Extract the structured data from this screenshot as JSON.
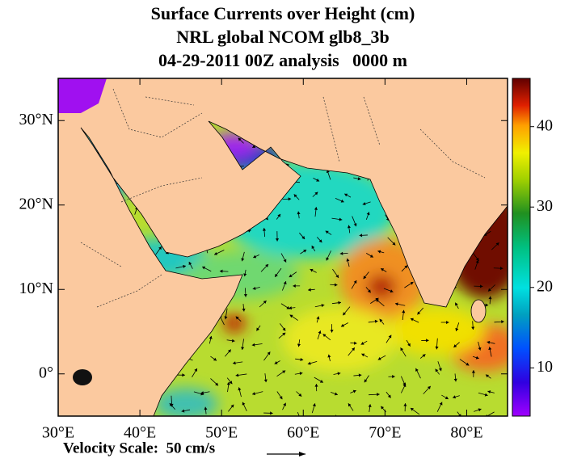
{
  "title": [
    "Surface Currents over Height (cm)",
    "NRL global NCOM glb8_3b",
    "04-29-2011 00Z analysis   0000 m"
  ],
  "map": {
    "lon_range": [
      30,
      85
    ],
    "lat_range": [
      -5,
      35
    ],
    "lon_ticks": [
      {
        "value": 30,
        "label": "30°E"
      },
      {
        "value": 40,
        "label": "40°E"
      },
      {
        "value": 50,
        "label": "50°E"
      },
      {
        "value": 60,
        "label": "60°E"
      },
      {
        "value": 70,
        "label": "70°E"
      },
      {
        "value": 80,
        "label": "80°E"
      }
    ],
    "lat_ticks": [
      {
        "value": 0,
        "label": "0°"
      },
      {
        "value": 10,
        "label": "10°N"
      },
      {
        "value": 20,
        "label": "20°N"
      },
      {
        "value": 30,
        "label": "30°N"
      }
    ]
  },
  "colorbar": {
    "range": [
      4,
      46
    ],
    "ticks": [
      10,
      20,
      30,
      40
    ]
  },
  "velocity_scale": "Velocity Scale:  50 cm/s"
}
